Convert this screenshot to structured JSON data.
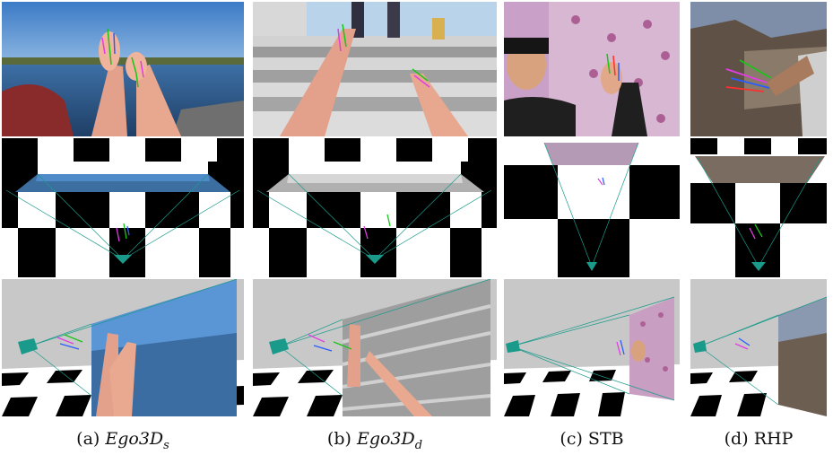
{
  "figure": {
    "columns": [
      {
        "label": "(a)",
        "name": "Ego3D",
        "subscript": "s",
        "italic": true
      },
      {
        "label": "(b)",
        "name": "Ego3D",
        "subscript": "d",
        "italic": true
      },
      {
        "label": "(c)",
        "name": "STB",
        "subscript": "",
        "italic": false
      },
      {
        "label": "(d)",
        "name": "RHP",
        "subscript": "",
        "italic": false
      }
    ],
    "rows": [
      "input-image",
      "top-view-3d-render",
      "side-view-3d-render"
    ]
  },
  "colors": {
    "sky": "#4a86c8",
    "water": "#2c5c8e",
    "skin": "#e7a58a",
    "stairs": "#bdbdbd",
    "camera": "#1a9a8a",
    "checker_dark": "#000000",
    "checker_light": "#ffffff",
    "backdrop_gray": "#c8c8c8"
  }
}
